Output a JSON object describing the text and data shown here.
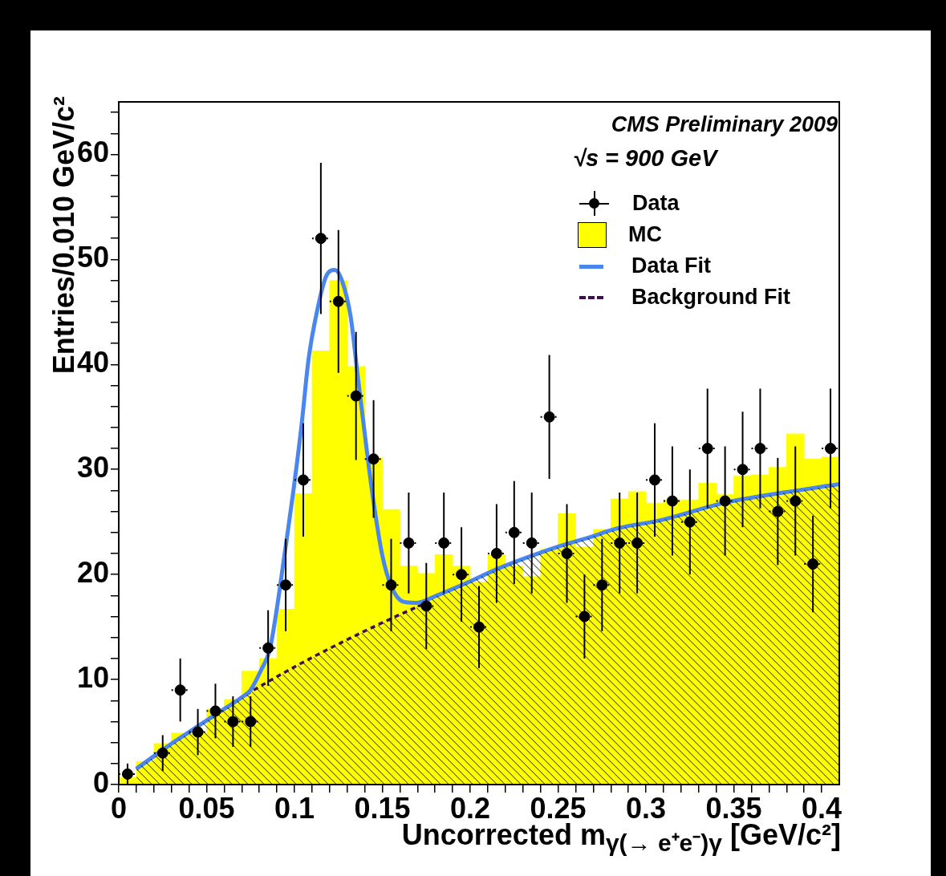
{
  "chart_data": {
    "type": "histogram",
    "xlabel": "Uncorrected m$_{γ(→ e⁺e⁻)γ}$ [GeV/c²]",
    "ylabel": "Entries/0.010 GeV/c²",
    "annotations": [
      "CMS Preliminary 2009",
      "√s = 900 GeV"
    ],
    "xlim": [
      0,
      0.41
    ],
    "ylim": [
      0,
      65
    ],
    "xticks": [
      0,
      {
        "value": 0.01,
        "label": null
      },
      {
        "value": 0.02,
        "label": null
      },
      {
        "value": 0.03,
        "label": null
      },
      {
        "value": 0.04,
        "label": null
      },
      0.05,
      {
        "value": 0.06,
        "label": null
      },
      {
        "value": 0.07,
        "label": null
      },
      {
        "value": 0.08,
        "label": null
      },
      {
        "value": 0.09,
        "label": null
      },
      0.1,
      {
        "value": 0.11,
        "label": null
      },
      {
        "value": 0.12,
        "label": null
      },
      {
        "value": 0.13,
        "label": null
      },
      {
        "value": 0.14,
        "label": null
      },
      0.15,
      {
        "value": 0.16,
        "label": null
      },
      {
        "value": 0.17,
        "label": null
      },
      {
        "value": 0.18,
        "label": null
      },
      {
        "value": 0.19,
        "label": null
      },
      0.2,
      {
        "value": 0.21,
        "label": null
      },
      {
        "value": 0.22,
        "label": null
      },
      {
        "value": 0.23,
        "label": null
      },
      {
        "value": 0.24,
        "label": null
      },
      0.25,
      {
        "value": 0.26,
        "label": null
      },
      {
        "value": 0.27,
        "label": null
      },
      {
        "value": 0.28,
        "label": null
      },
      {
        "value": 0.29,
        "label": null
      },
      0.3,
      {
        "value": 0.31,
        "label": null
      },
      {
        "value": 0.32,
        "label": null
      },
      {
        "value": 0.33,
        "label": null
      },
      {
        "value": 0.34,
        "label": null
      },
      0.35,
      {
        "value": 0.36,
        "label": null
      },
      {
        "value": 0.37,
        "label": null
      },
      {
        "value": 0.38,
        "label": null
      },
      {
        "value": 0.39,
        "label": null
      },
      0.4
    ],
    "yticks": [
      0,
      {
        "value": 2,
        "label": null
      },
      {
        "value": 4,
        "label": null
      },
      {
        "value": 6,
        "label": null
      },
      {
        "value": 8,
        "label": null
      },
      10,
      {
        "value": 12,
        "label": null
      },
      {
        "value": 14,
        "label": null
      },
      {
        "value": 16,
        "label": null
      },
      {
        "value": 18,
        "label": null
      },
      20,
      {
        "value": 22,
        "label": null
      },
      {
        "value": 24,
        "label": null
      },
      {
        "value": 26,
        "label": null
      },
      {
        "value": 28,
        "label": null
      },
      30,
      {
        "value": 32,
        "label": null
      },
      {
        "value": 34,
        "label": null
      },
      {
        "value": 36,
        "label": null
      },
      {
        "value": 38,
        "label": null
      },
      40,
      {
        "value": 42,
        "label": null
      },
      {
        "value": 44,
        "label": null
      },
      {
        "value": 46,
        "label": null
      },
      {
        "value": 48,
        "label": null
      },
      50,
      {
        "value": 52,
        "label": null
      },
      {
        "value": 54,
        "label": null
      },
      {
        "value": 56,
        "label": null
      },
      {
        "value": 58,
        "label": null
      },
      60,
      {
        "value": 62,
        "label": null
      },
      {
        "value": 64,
        "label": null
      }
    ],
    "legend": "top right",
    "grid": false,
    "series": [
      {
        "name": "MC",
        "color": "#ffff00",
        "bins": [
          0,
          0.01,
          0.02,
          0.03,
          0.04,
          0.05,
          0.06,
          0.07,
          0.08,
          0.09,
          0.1,
          0.11,
          0.12,
          0.13,
          0.14,
          0.15,
          0.16,
          0.17,
          0.18,
          0.19,
          0.2,
          0.21,
          0.22,
          0.23,
          0.24,
          0.25,
          0.26,
          0.27,
          0.28,
          0.29,
          0.3,
          0.31,
          0.32,
          0.33,
          0.34,
          0.35,
          0.36,
          0.37,
          0.38,
          0.39,
          0.4,
          0.41
        ],
        "values": [
          0.7,
          2.2,
          3.9,
          4.9,
          4.9,
          7.2,
          8.1,
          10.8,
          12.0,
          16.7,
          27.7,
          41.3,
          48.0,
          39.8,
          31.1,
          26.2,
          20.8,
          20.1,
          21.9,
          20.8,
          19.3,
          21.9,
          20.8,
          19.8,
          22.4,
          25.8,
          22.6,
          24.3,
          27.2,
          27.9,
          26.8,
          27.1,
          27.1,
          28.7,
          27.6,
          29.4,
          29.5,
          30.2,
          33.4,
          31.0,
          31.2
        ]
      },
      {
        "type": "scatter",
        "name": "Data",
        "color": "#000000",
        "marker": "circle",
        "x": [
          0.005,
          0.025,
          0.035,
          0.045,
          0.055,
          0.065,
          0.075,
          0.085,
          0.095,
          0.105,
          0.115,
          0.125,
          0.135,
          0.145,
          0.155,
          0.165,
          0.175,
          0.185,
          0.195,
          0.205,
          0.215,
          0.225,
          0.235,
          0.245,
          0.255,
          0.265,
          0.275,
          0.285,
          0.295,
          0.305,
          0.315,
          0.325,
          0.335,
          0.345,
          0.355,
          0.365,
          0.375,
          0.385,
          0.395,
          0.405
        ],
        "values": [
          1,
          3,
          9,
          5,
          7,
          6,
          6,
          13,
          19,
          29,
          52,
          46,
          37,
          31,
          19,
          23,
          17,
          23,
          20,
          15,
          22,
          24,
          23,
          35,
          22,
          16,
          19,
          23,
          23,
          29,
          27,
          25,
          32,
          27,
          30,
          32,
          26,
          27,
          21,
          32
        ],
        "errors": [
          1,
          1.7,
          3,
          2.2,
          2.6,
          2.4,
          2.4,
          3.6,
          4.4,
          5.4,
          7.2,
          6.8,
          6.1,
          5.6,
          4.4,
          4.8,
          4.1,
          4.8,
          4.5,
          3.9,
          4.7,
          4.9,
          4.8,
          5.9,
          4.7,
          4,
          4.4,
          4.8,
          4.8,
          5.4,
          5.2,
          5,
          5.7,
          5.2,
          5.5,
          5.7,
          5.1,
          5.2,
          4.6,
          5.7
        ],
        "xerrors": [
          0.005,
          0.005,
          0.005,
          0.005,
          0.005,
          0.005,
          0.005,
          0.005,
          0.005,
          0.005,
          0.005,
          0.005,
          0.005,
          0.005,
          0.005,
          0.005,
          0.005,
          0.005,
          0.005,
          0.005,
          0.005,
          0.005,
          0.005,
          0.005,
          0.005,
          0.005,
          0.005,
          0.005,
          0.005,
          0.005,
          0.005,
          0.005,
          0.005,
          0.005,
          0.005,
          0.005,
          0.005,
          0.005,
          0.005,
          0.005
        ]
      },
      {
        "type": "line",
        "name": "Data Fit",
        "color": "#4a86f0",
        "line_style": "solid",
        "marker": "none",
        "x": [
          0.01,
          0.02,
          0.03,
          0.04,
          0.05,
          0.06,
          0.07,
          0.075,
          0.081,
          0.086,
          0.09,
          0.094,
          0.099,
          0.104,
          0.108,
          0.113,
          0.118,
          0.123,
          0.127,
          0.132,
          0.136,
          0.141,
          0.145,
          0.15,
          0.155,
          0.162,
          0.169,
          0.181,
          0.198,
          0.215,
          0.232,
          0.249,
          0.267,
          0.284,
          0.309,
          0.344,
          0.378,
          0.41
        ],
        "values": [
          1.5,
          2.7,
          3.9,
          5.0,
          6.1,
          7.2,
          8.3,
          9.0,
          10.9,
          12.9,
          16.8,
          21.5,
          27.5,
          34.2,
          40.5,
          45.2,
          48.4,
          49.0,
          48.0,
          44.5,
          38.9,
          32.0,
          26.9,
          21.8,
          18.9,
          17.4,
          17.3,
          18.0,
          19.2,
          20.5,
          21.6,
          22.6,
          23.5,
          24.4,
          25.2,
          26.8,
          27.8,
          28.6
        ]
      },
      {
        "type": "line",
        "name": "Background Fit",
        "color": "#3d0f4f",
        "line_style": "dashed",
        "marker": "none",
        "x": [
          0.01,
          0.04,
          0.07,
          0.1,
          0.13,
          0.155,
          0.175
        ],
        "values": [
          1.5,
          5.0,
          8.3,
          11.2,
          13.8,
          15.8,
          17.3
        ]
      }
    ]
  }
}
